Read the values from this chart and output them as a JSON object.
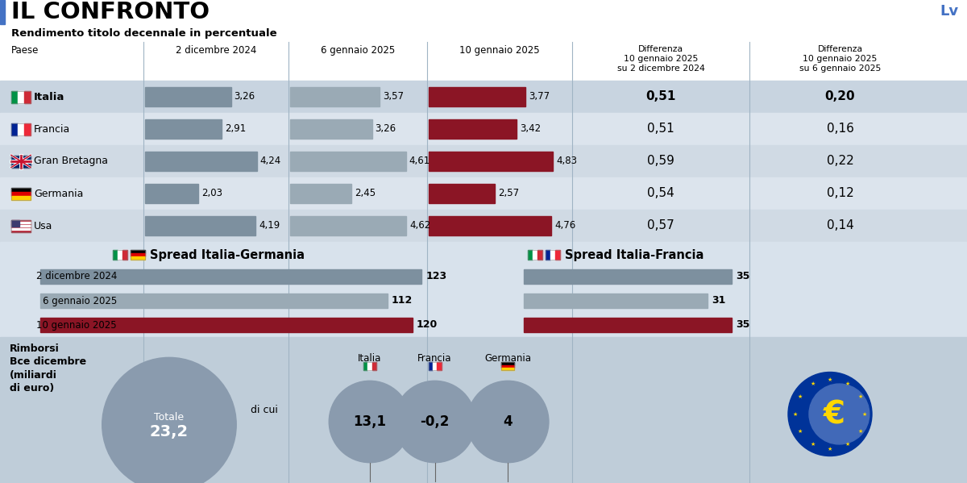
{
  "title": "IL CONFRONTO",
  "subtitle": "Rendimento titolo decennale in percentuale",
  "col_headers": [
    "Paese",
    "2 dicembre 2024",
    "6 gennaio 2025",
    "10 gennaio 2025"
  ],
  "diff_header1_line1": "Differenza",
  "diff_header1_line2": "10 gennaio 2025",
  "diff_header1_line3": "su 2 dicembre 2024",
  "diff_header2_line1": "Differenza",
  "diff_header2_line2": "10 gennaio 2025",
  "diff_header2_line3": "su 6 gennaio 2025",
  "countries": [
    "Italia",
    "Francia",
    "Gran Bretagna",
    "Germania",
    "Usa"
  ],
  "values_dec2": [
    3.26,
    2.91,
    4.24,
    2.03,
    4.19
  ],
  "values_jan6": [
    3.57,
    3.26,
    4.61,
    2.45,
    4.62
  ],
  "values_jan10": [
    3.77,
    3.42,
    4.83,
    2.57,
    4.76
  ],
  "diff1": [
    "0,51",
    "0,51",
    "0,59",
    "0,54",
    "0,57"
  ],
  "diff2": [
    "0,20",
    "0,16",
    "0,22",
    "0,12",
    "0,14"
  ],
  "bar_color_dark": "#7d909f",
  "bar_color_mid": "#9aaab5",
  "bar_color_red": "#8b1525",
  "spread_ig_labels": [
    "2 dicembre 2024",
    "6 gennaio 2025",
    "10 gennaio 2025"
  ],
  "spread_ig_values": [
    123,
    112,
    120
  ],
  "spread_if_values": [
    35,
    31,
    35
  ],
  "spread_bar_color_dark": "#7d909f",
  "spread_bar_color_mid": "#9aaab5",
  "spread_bar_color_red": "#8b1525",
  "rimborsi_totale": "23,2",
  "rimborsi_italia": "13,1",
  "rimborsi_francia": "-0,2",
  "rimborsi_germania": "4",
  "row_bg_a": "#d0dae4",
  "row_bg_b": "#dce4ed",
  "row_bg_italia": "#c8d4e0",
  "table_bg": "#dce4ed",
  "header_row_bg": "#e8edf4",
  "spread_bg": "#d8e2ec",
  "bottom_bg": "#bfcdd9",
  "sep_color": "#a0b4c4",
  "logo_color": "#4472c4",
  "title_bar_color": "#4472c4",
  "circle_color": "#8a9bae",
  "ecb_blue": "#003399",
  "ecb_gold": "#FFD700",
  "ecb_arc_blue": "#4169b8"
}
